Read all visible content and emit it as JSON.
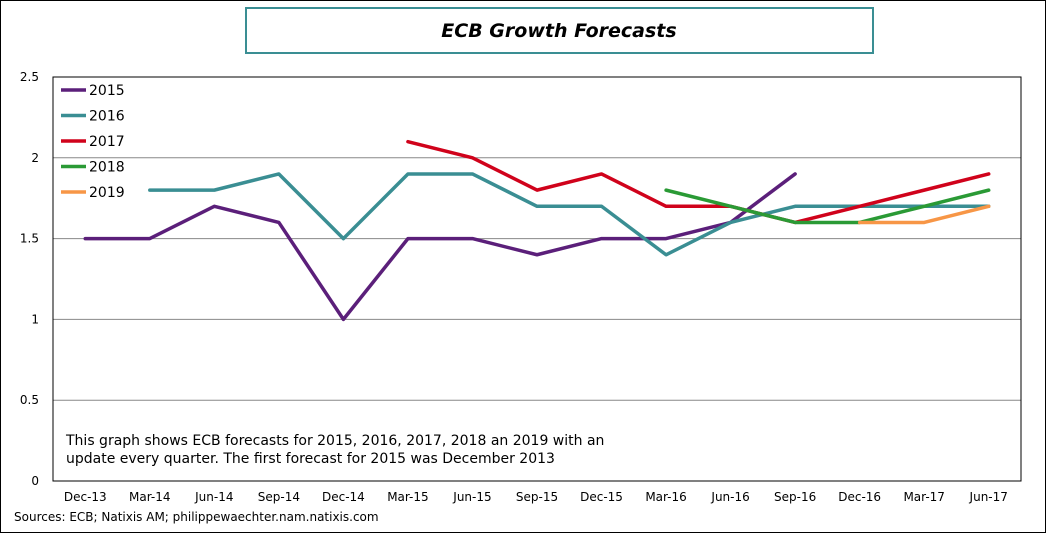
{
  "chart_data": {
    "type": "line",
    "title": "ECB Growth Forecasts",
    "categories": [
      "Dec-13",
      "Mar-14",
      "Jun-14",
      "Sep-14",
      "Dec-14",
      "Mar-15",
      "Jun-15",
      "Sep-15",
      "Dec-15",
      "Mar-16",
      "Jun-16",
      "Sep-16",
      "Dec-16",
      "Mar-17",
      "Jun-17"
    ],
    "ylim": [
      0,
      2.5
    ],
    "yticks": [
      "0",
      "0.5",
      "1",
      "1.5",
      "2",
      "2.5"
    ],
    "grid": true,
    "legend_position": "top-left",
    "series": [
      {
        "name": "2015",
        "color": "#5B1F7A",
        "values": [
          1.5,
          1.5,
          1.7,
          1.6,
          1.0,
          1.5,
          1.5,
          1.4,
          1.5,
          1.5,
          1.6,
          1.9,
          null,
          null,
          null
        ]
      },
      {
        "name": "2016",
        "color": "#3A8E93",
        "values": [
          null,
          1.8,
          1.8,
          1.9,
          1.5,
          1.9,
          1.9,
          1.7,
          1.7,
          1.4,
          1.6,
          1.7,
          1.7,
          1.7,
          1.7
        ]
      },
      {
        "name": "2017",
        "color": "#D0021B",
        "values": [
          null,
          null,
          null,
          null,
          null,
          2.1,
          2.0,
          1.8,
          1.9,
          1.7,
          1.7,
          1.6,
          1.7,
          1.8,
          1.9
        ]
      },
      {
        "name": "2018",
        "color": "#2A9A35",
        "values": [
          null,
          null,
          null,
          null,
          null,
          null,
          null,
          null,
          null,
          1.8,
          1.7,
          1.6,
          1.6,
          1.7,
          1.8
        ]
      },
      {
        "name": "2019",
        "color": "#F79646",
        "values": [
          null,
          null,
          null,
          null,
          null,
          null,
          null,
          null,
          null,
          null,
          null,
          null,
          1.6,
          1.6,
          1.7
        ]
      }
    ],
    "annotation": [
      "This graph shows ECB forecasts for 2015, 2016, 2017, 2018 an 2019 with an",
      "update every quarter.  The first forecast for 2015 was December 2013"
    ],
    "source": "Sources: ECB; Natixis AM; philippewaechter.nam.natixis.com"
  }
}
